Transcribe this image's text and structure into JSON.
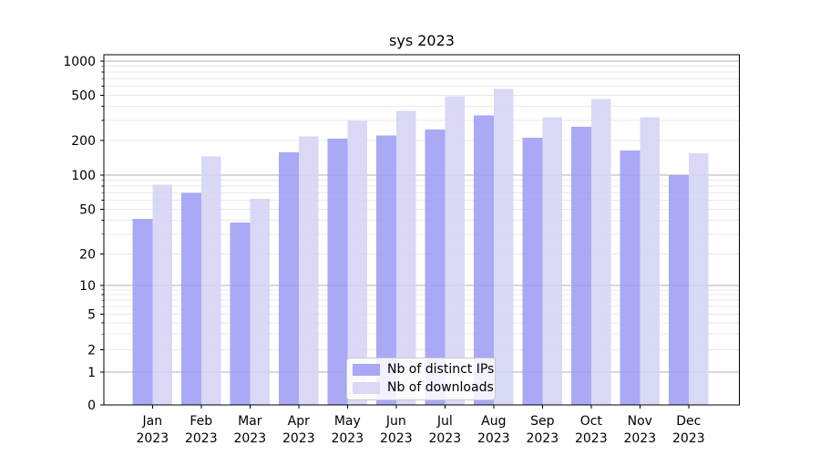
{
  "chart_data": {
    "type": "bar",
    "title": "sys 2023",
    "categories": [
      "Jan",
      "Feb",
      "Mar",
      "Apr",
      "May",
      "Jun",
      "Jul",
      "Aug",
      "Sep",
      "Oct",
      "Nov",
      "Dec"
    ],
    "category_year": "2023",
    "series": [
      {
        "name": "Nb of distinct IPs",
        "color": "#9a9af5",
        "values": [
          41,
          70,
          38,
          158,
          207,
          222,
          249,
          334,
          211,
          264,
          164,
          100
        ]
      },
      {
        "name": "Nb of downloads",
        "color": "#d2d2f5",
        "values": [
          82,
          145,
          62,
          218,
          297,
          366,
          492,
          570,
          320,
          465,
          322,
          155
        ]
      }
    ],
    "y_ticks": [
      0,
      1,
      2,
      5,
      10,
      20,
      50,
      100,
      200,
      500,
      1000
    ],
    "ylim": [
      0,
      1140
    ],
    "yscale": "symlog",
    "grid": "both",
    "grid_major_color": "#b2b2b2",
    "grid_minor_color": "#e9e9e9",
    "axis_color": "#000000",
    "legend_position": "lower center",
    "background": "#ffffff"
  }
}
